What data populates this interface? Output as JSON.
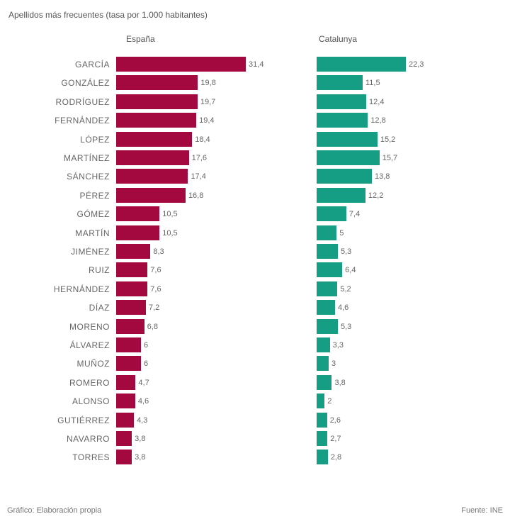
{
  "chart_data": {
    "type": "bar",
    "orientation": "horizontal",
    "title": "Apellidos más frecuentes (tasa por 1.000 habitantes)",
    "categories": [
      "GARCÍA",
      "GONZÁLEZ",
      "RODRÍGUEZ",
      "FERNÁNDEZ",
      "LÓPEZ",
      "MARTÍNEZ",
      "SÁNCHEZ",
      "PÉREZ",
      "GÓMEZ",
      "MARTÍN",
      "JIMÉNEZ",
      "RUIZ",
      "HERNÁNDEZ",
      "DÍAZ",
      "MORENO",
      "ÁLVAREZ",
      "MUÑOZ",
      "ROMERO",
      "ALONSO",
      "GUTIÉRREZ",
      "NAVARRO",
      "TORRES"
    ],
    "series": [
      {
        "name": "España",
        "color": "#a3093f",
        "values": [
          31.4,
          19.8,
          19.7,
          19.4,
          18.4,
          17.6,
          17.4,
          16.8,
          10.5,
          10.5,
          8.3,
          7.6,
          7.6,
          7.2,
          6.8,
          6,
          6,
          4.7,
          4.6,
          4.3,
          3.8,
          3.8
        ],
        "labels": [
          "31,4",
          "19,8",
          "19,7",
          "19,4",
          "18,4",
          "17,6",
          "17,4",
          "16,8",
          "10,5",
          "10,5",
          "8,3",
          "7,6",
          "7,6",
          "7,2",
          "6,8",
          "6",
          "6",
          "4,7",
          "4,6",
          "4,3",
          "3,8",
          "3,8"
        ]
      },
      {
        "name": "Catalunya",
        "color": "#159e84",
        "values": [
          22.3,
          11.5,
          12.4,
          12.8,
          15.2,
          15.7,
          13.8,
          12.2,
          7.4,
          5,
          5.3,
          6.4,
          5.2,
          4.6,
          5.3,
          3.3,
          3,
          3.8,
          2,
          2.6,
          2.7,
          2.8
        ],
        "labels": [
          "22,3",
          "11,5",
          "12,4",
          "12,8",
          "15,2",
          "15,7",
          "13,8",
          "12,2",
          "7,4",
          "5",
          "5,3",
          "6,4",
          "5,2",
          "4,6",
          "5,3",
          "3,3",
          "3",
          "3,8",
          "2",
          "2,6",
          "2,7",
          "2,8"
        ]
      }
    ],
    "grid": false
  },
  "footer": {
    "left": "Gráfico: Elaboración propia",
    "right": "Fuente: INE"
  }
}
